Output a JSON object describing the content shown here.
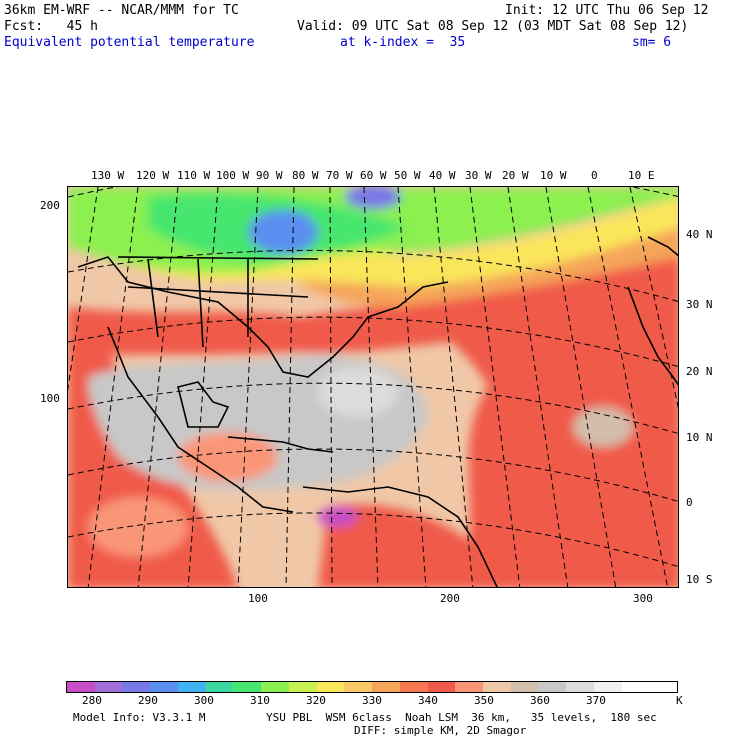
{
  "header": {
    "model": "36km EM-WRF -- NCAR/MMM for TC",
    "init": "Init: 12 UTC Thu 06 Sep 12",
    "fcst": "Fcst:   45 h",
    "valid": "Valid: 09 UTC Sat 08 Sep 12 (03 MDT Sat 08 Sep 12)",
    "field": "Equivalent potential temperature",
    "level": "at k-index =  35",
    "smooth": "sm= 6"
  },
  "map": {
    "top_lon_labels": [
      "130 W",
      "120 W",
      "110 W",
      "100 W",
      "90 W",
      "80 W",
      "70 W",
      "60 W",
      "50 W",
      "40 W",
      "30 W",
      "20 W",
      "10 W",
      "0",
      "10 E"
    ],
    "right_lat_labels": [
      "40 N",
      "30 N",
      "20 N",
      "10 N",
      "0",
      "10 S"
    ],
    "left_grid_labels": [
      "200",
      "100"
    ],
    "bottom_grid_labels": [
      "100",
      "200",
      "300"
    ]
  },
  "legend": {
    "colors": [
      "#c84ec8",
      "#a070d8",
      "#7878e6",
      "#5a8ef0",
      "#40b4f0",
      "#3cd8a0",
      "#46e66e",
      "#8cf050",
      "#c8f050",
      "#fae65a",
      "#fac864",
      "#f5a55a",
      "#f57850",
      "#f05a4a",
      "#fa9678",
      "#f0c8a8",
      "#d2beaa",
      "#c8c8c8",
      "#dcdcdc",
      "#f0f0f0",
      "#ffffff",
      "#ffffff"
    ],
    "labels": [
      "280",
      "290",
      "300",
      "310",
      "320",
      "330",
      "340",
      "350",
      "360",
      "370"
    ],
    "unit": "K"
  },
  "footer": {
    "model_info": "Model Info: V3.3.1 M",
    "physics1": "YSU PBL  WSM 6class  Noah LSM  36 km,   35 levels,  180 sec",
    "physics2": "DIFF: simple KM, 2D Smagor"
  }
}
